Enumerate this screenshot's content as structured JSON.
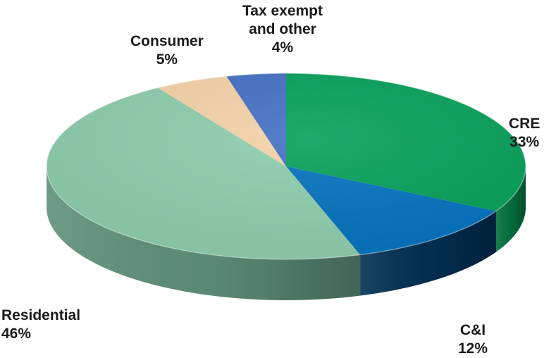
{
  "chart_data": {
    "type": "pie",
    "style": "3d",
    "title": "",
    "slices": [
      {
        "name": "CRE",
        "value": 33,
        "pct_label": "33%",
        "color": "#07A05A",
        "side_color": "#05703F"
      },
      {
        "name": "C&I",
        "value": 12,
        "pct_label": "12%",
        "color": "#0472BE",
        "side_color": "#022F52"
      },
      {
        "name": "Residential",
        "value": 46,
        "pct_label": "46%",
        "color": "#8ECDAE",
        "side_color": "#5E9079"
      },
      {
        "name": "Consumer",
        "value": 5,
        "pct_label": "5%",
        "color": "#F3D2A8",
        "side_color": "#B89E7E"
      },
      {
        "name": "Tax exempt and other",
        "name_lines": [
          "Tax exempt",
          "and other"
        ],
        "value": 4,
        "pct_label": "4%",
        "color": "#4470C4",
        "side_color": "#2C4C86"
      }
    ],
    "legend": "none"
  }
}
